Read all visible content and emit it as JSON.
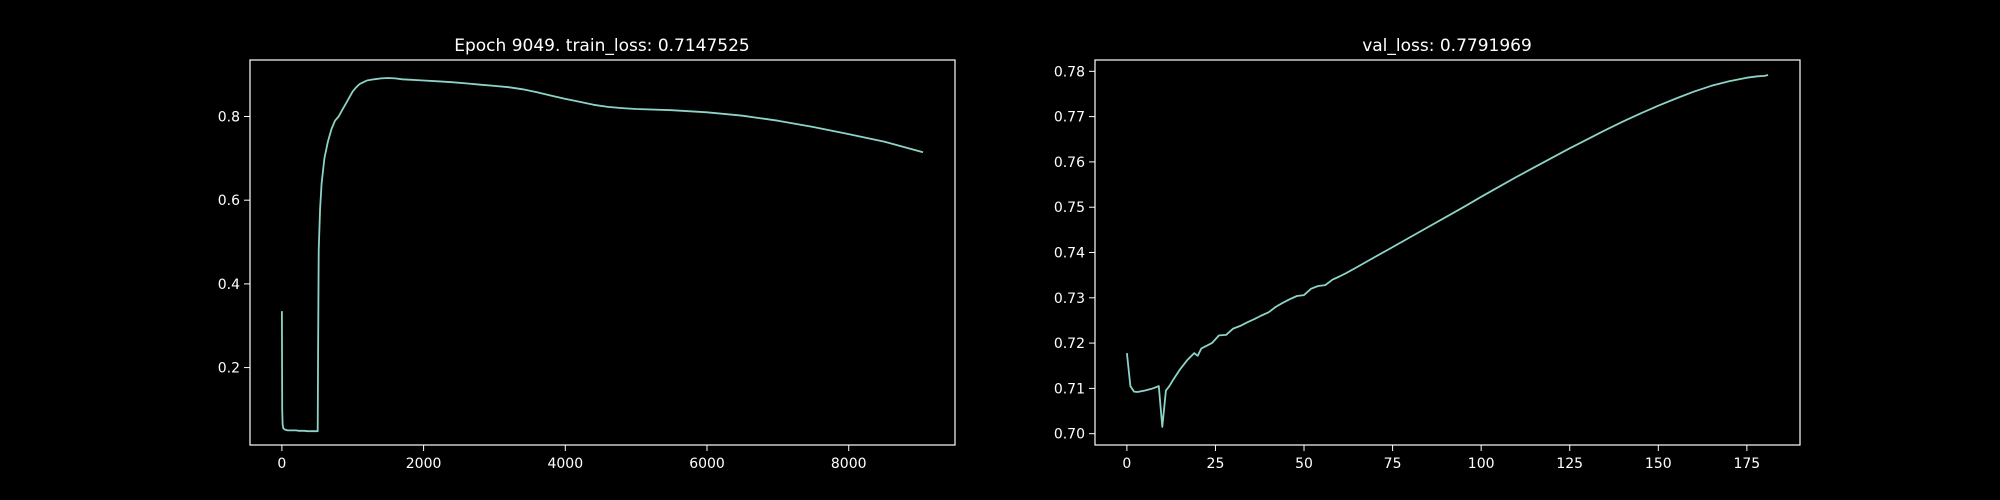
{
  "figure": {
    "background": "#000000",
    "foreground": "#ffffff",
    "line_color": "#8dd3c7"
  },
  "chart_data": [
    {
      "type": "line",
      "title": "Epoch 9049. train_loss: 0.7147525",
      "xlabel": "",
      "ylabel": "",
      "xlim": [
        -450,
        9500
      ],
      "ylim": [
        0.015,
        0.935
      ],
      "xticks": [
        0,
        2000,
        4000,
        6000,
        8000
      ],
      "xtick_labels": [
        "0",
        "2000",
        "4000",
        "6000",
        "8000"
      ],
      "yticks": [
        0.2,
        0.4,
        0.6,
        0.8
      ],
      "ytick_labels": [
        "0.2",
        "0.4",
        "0.6",
        "0.8"
      ],
      "grid": false,
      "series": [
        {
          "x": [
            0,
            5,
            10,
            20,
            40,
            80,
            120,
            160,
            200,
            240,
            280,
            320,
            360,
            400,
            440,
            480,
            505,
            510,
            520,
            540,
            560,
            580,
            600,
            650,
            700,
            750,
            800,
            850,
            900,
            950,
            1000,
            1050,
            1100,
            1150,
            1200,
            1300,
            1400,
            1500,
            1600,
            1700,
            1800,
            2000,
            2200,
            2400,
            2600,
            2800,
            3000,
            3200,
            3400,
            3600,
            3800,
            4000,
            4200,
            4400,
            4600,
            4800,
            5000,
            5500,
            6000,
            6500,
            7000,
            7500,
            8000,
            8500,
            9049
          ],
          "y": [
            0.335,
            0.1,
            0.065,
            0.055,
            0.052,
            0.05,
            0.05,
            0.05,
            0.05,
            0.049,
            0.049,
            0.049,
            0.048,
            0.048,
            0.048,
            0.048,
            0.048,
            0.2,
            0.48,
            0.58,
            0.64,
            0.67,
            0.7,
            0.74,
            0.77,
            0.79,
            0.8,
            0.815,
            0.83,
            0.845,
            0.86,
            0.87,
            0.878,
            0.882,
            0.886,
            0.889,
            0.891,
            0.892,
            0.891,
            0.889,
            0.888,
            0.886,
            0.884,
            0.882,
            0.879,
            0.876,
            0.873,
            0.87,
            0.865,
            0.858,
            0.85,
            0.842,
            0.835,
            0.828,
            0.823,
            0.82,
            0.818,
            0.815,
            0.81,
            0.802,
            0.79,
            0.775,
            0.758,
            0.74,
            0.7147525
          ]
        }
      ]
    },
    {
      "type": "line",
      "title": "val_loss: 0.7791969",
      "xlabel": "",
      "ylabel": "",
      "xlim": [
        -9,
        190
      ],
      "ylim": [
        0.6975,
        0.7825
      ],
      "xticks": [
        0,
        25,
        50,
        75,
        100,
        125,
        150,
        175
      ],
      "xtick_labels": [
        "0",
        "25",
        "50",
        "75",
        "100",
        "125",
        "150",
        "175"
      ],
      "yticks": [
        0.7,
        0.71,
        0.72,
        0.73,
        0.74,
        0.75,
        0.76,
        0.77,
        0.78
      ],
      "ytick_labels": [
        "0.70",
        "0.71",
        "0.72",
        "0.73",
        "0.74",
        "0.75",
        "0.76",
        "0.77",
        "0.78"
      ],
      "grid": false,
      "series": [
        {
          "x": [
            0,
            1,
            2,
            3,
            5,
            7,
            9,
            10,
            11,
            12,
            13,
            15,
            17,
            19,
            20,
            21,
            22,
            24,
            26,
            28,
            30,
            32,
            34,
            36,
            38,
            40,
            42,
            44,
            46,
            48,
            50,
            52,
            54,
            56,
            58,
            60,
            62,
            65,
            70,
            75,
            80,
            85,
            90,
            95,
            100,
            105,
            110,
            115,
            120,
            125,
            130,
            135,
            140,
            145,
            150,
            155,
            160,
            165,
            170,
            175,
            178,
            180,
            181
          ],
          "y": [
            0.7178,
            0.7105,
            0.7093,
            0.7092,
            0.7095,
            0.7099,
            0.7105,
            0.7015,
            0.7095,
            0.7105,
            0.7118,
            0.7142,
            0.7162,
            0.7178,
            0.7172,
            0.7188,
            0.7192,
            0.72,
            0.7217,
            0.7218,
            0.7232,
            0.7238,
            0.7246,
            0.7253,
            0.7261,
            0.7268,
            0.728,
            0.7289,
            0.7297,
            0.7304,
            0.7306,
            0.732,
            0.7326,
            0.7328,
            0.734,
            0.7347,
            0.7355,
            0.7368,
            0.739,
            0.7412,
            0.7434,
            0.7456,
            0.7478,
            0.75,
            0.7523,
            0.7545,
            0.7567,
            0.7588,
            0.7609,
            0.763,
            0.765,
            0.767,
            0.7689,
            0.7707,
            0.7724,
            0.774,
            0.7755,
            0.7768,
            0.7778,
            0.7786,
            0.7789,
            0.779,
            0.7791969
          ]
        }
      ]
    }
  ]
}
